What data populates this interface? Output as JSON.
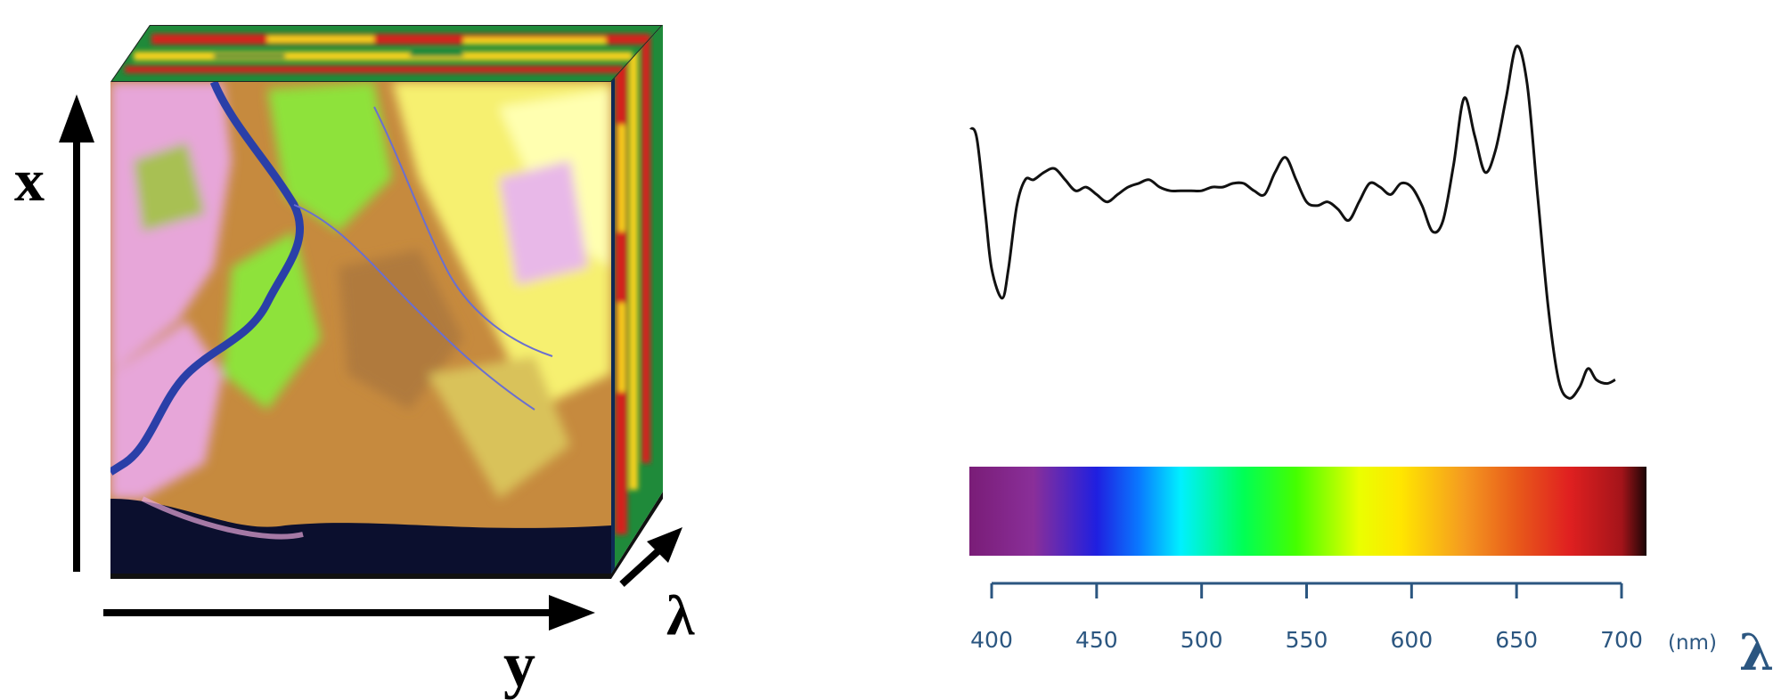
{
  "cube": {
    "axis_x_label": "x",
    "axis_y_label": "y",
    "axis_lambda_label": "λ",
    "colors": {
      "axis": "#000000",
      "water": "#2a3fa8",
      "vegetation": "#8ee23a",
      "soil": "#c68a3e",
      "sand": "#f6f070",
      "pink_terrain": "#e7a6d9",
      "side_red": "#d4201a",
      "side_yellow": "#f7d21c",
      "side_green": "#1f8a3a"
    }
  },
  "spectrum": {
    "tick_labels": [
      "400",
      "450",
      "500",
      "550",
      "600",
      "650",
      "700"
    ],
    "unit_label": "(nm)",
    "axis_symbol": "λ",
    "axis_color": "#2b5680",
    "colorbar_stops": [
      {
        "wavelength": 390,
        "color": "#7a1d78"
      },
      {
        "wavelength": 420,
        "color": "#8a2f99"
      },
      {
        "wavelength": 450,
        "color": "#1f1fe0"
      },
      {
        "wavelength": 470,
        "color": "#0a78ff"
      },
      {
        "wavelength": 490,
        "color": "#00f0ff"
      },
      {
        "wavelength": 520,
        "color": "#00ff55"
      },
      {
        "wavelength": 545,
        "color": "#44ff00"
      },
      {
        "wavelength": 575,
        "color": "#eaff00"
      },
      {
        "wavelength": 595,
        "color": "#ffe600"
      },
      {
        "wavelength": 625,
        "color": "#f59a20"
      },
      {
        "wavelength": 650,
        "color": "#e85a1a"
      },
      {
        "wavelength": 675,
        "color": "#e02020"
      },
      {
        "wavelength": 700,
        "color": "#a4141a"
      },
      {
        "wavelength": 715,
        "color": "#1a0505"
      }
    ],
    "curve": [
      [
        390,
        0.78
      ],
      [
        393,
        0.75
      ],
      [
        397,
        0.55
      ],
      [
        400,
        0.4
      ],
      [
        405,
        0.32
      ],
      [
        408,
        0.4
      ],
      [
        412,
        0.57
      ],
      [
        416,
        0.64
      ],
      [
        420,
        0.64
      ],
      [
        425,
        0.66
      ],
      [
        430,
        0.67
      ],
      [
        435,
        0.64
      ],
      [
        440,
        0.61
      ],
      [
        445,
        0.62
      ],
      [
        450,
        0.6
      ],
      [
        455,
        0.58
      ],
      [
        460,
        0.6
      ],
      [
        465,
        0.62
      ],
      [
        470,
        0.63
      ],
      [
        475,
        0.64
      ],
      [
        480,
        0.62
      ],
      [
        485,
        0.61
      ],
      [
        490,
        0.61
      ],
      [
        495,
        0.61
      ],
      [
        500,
        0.61
      ],
      [
        505,
        0.62
      ],
      [
        510,
        0.62
      ],
      [
        515,
        0.63
      ],
      [
        520,
        0.63
      ],
      [
        525,
        0.61
      ],
      [
        530,
        0.6
      ],
      [
        535,
        0.66
      ],
      [
        540,
        0.7
      ],
      [
        545,
        0.64
      ],
      [
        550,
        0.58
      ],
      [
        555,
        0.57
      ],
      [
        560,
        0.58
      ],
      [
        565,
        0.56
      ],
      [
        570,
        0.53
      ],
      [
        575,
        0.58
      ],
      [
        580,
        0.63
      ],
      [
        585,
        0.62
      ],
      [
        590,
        0.6
      ],
      [
        595,
        0.63
      ],
      [
        600,
        0.62
      ],
      [
        605,
        0.57
      ],
      [
        610,
        0.5
      ],
      [
        615,
        0.53
      ],
      [
        620,
        0.68
      ],
      [
        625,
        0.86
      ],
      [
        630,
        0.76
      ],
      [
        635,
        0.66
      ],
      [
        640,
        0.72
      ],
      [
        645,
        0.86
      ],
      [
        650,
        1.0
      ],
      [
        655,
        0.9
      ],
      [
        660,
        0.6
      ],
      [
        665,
        0.3
      ],
      [
        670,
        0.1
      ],
      [
        675,
        0.05
      ],
      [
        680,
        0.08
      ],
      [
        684,
        0.13
      ],
      [
        688,
        0.1
      ],
      [
        693,
        0.09
      ],
      [
        697,
        0.1
      ]
    ]
  }
}
